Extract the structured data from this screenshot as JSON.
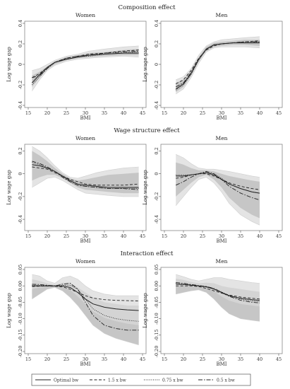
{
  "figure": {
    "legend": [
      {
        "label": "Optimal bw",
        "dash": ""
      },
      {
        "label": "1.5 x bw",
        "dash": "4 2.5"
      },
      {
        "label": "0.75 x bw",
        "dash": "1 1.6"
      },
      {
        "label": "0.5 x bw",
        "dash": "6 2 1.5 2"
      }
    ],
    "band_colors": {
      "outer": "#e4e4e4",
      "inner": "#c6c6c6"
    }
  },
  "chart_data": [
    {
      "type": "line",
      "section": "Composition effect",
      "title": "Women",
      "xlabel": "BMI",
      "ylabel": "Log wage gap",
      "xticks": [
        15,
        20,
        25,
        30,
        35,
        40,
        45
      ],
      "yticks": [
        "0.4",
        "0.2",
        "0",
        "-0.2",
        "-0.4"
      ],
      "xlim": [
        15,
        45
      ],
      "ylim": [
        -0.4,
        0.4
      ],
      "band_pattern": "nested",
      "x": [
        16,
        18,
        20,
        22,
        25,
        28,
        31,
        35,
        40,
        44
      ],
      "series": [
        {
          "name": "Optimal bw",
          "values": [
            -0.18,
            -0.1,
            -0.03,
            0.02,
            0.05,
            0.07,
            0.09,
            0.1,
            0.11,
            0.11
          ]
        },
        {
          "name": "1.5 x bw",
          "values": [
            -0.13,
            -0.09,
            -0.03,
            0.02,
            0.06,
            0.08,
            0.1,
            0.11,
            0.13,
            0.14
          ]
        },
        {
          "name": "0.75 x bw",
          "values": [
            -0.2,
            -0.12,
            -0.04,
            0.02,
            0.05,
            0.07,
            0.08,
            0.1,
            0.11,
            0.12
          ]
        },
        {
          "name": "0.5 x bw",
          "values": [
            -0.13,
            -0.11,
            -0.04,
            0.02,
            0.06,
            0.08,
            0.09,
            0.11,
            0.12,
            0.13
          ]
        }
      ],
      "ci_outer": {
        "lower": [
          -0.26,
          -0.15,
          -0.06,
          -0.01,
          0.03,
          0.05,
          0.06,
          0.07,
          0.08,
          0.07
        ],
        "upper": [
          -0.06,
          -0.04,
          0.0,
          0.04,
          0.08,
          0.1,
          0.13,
          0.15,
          0.17,
          0.18
        ]
      },
      "ci_inner": {
        "lower": [
          -0.22,
          -0.13,
          -0.05,
          0.0,
          0.04,
          0.06,
          0.07,
          0.08,
          0.09,
          0.09
        ],
        "upper": [
          -0.11,
          -0.07,
          -0.02,
          0.03,
          0.07,
          0.09,
          0.11,
          0.12,
          0.14,
          0.15
        ]
      }
    },
    {
      "type": "line",
      "section": "Composition effect",
      "title": "Men",
      "xlabel": "BMI",
      "ylabel": "Log wage gap",
      "xticks": [
        15,
        20,
        25,
        30,
        35,
        40,
        45
      ],
      "yticks": [
        "0.4",
        "0.2",
        "0",
        "-0.2",
        "-0.4"
      ],
      "xlim": [
        15,
        45
      ],
      "ylim": [
        -0.4,
        0.4
      ],
      "band_pattern": "nested",
      "x": [
        18,
        20,
        22,
        24,
        26,
        28,
        30,
        33,
        36,
        40
      ],
      "series": [
        {
          "name": "Optimal bw",
          "values": [
            -0.24,
            -0.19,
            -0.09,
            0.05,
            0.15,
            0.19,
            0.2,
            0.21,
            0.21,
            0.21
          ]
        },
        {
          "name": "1.5 x bw",
          "values": [
            -0.19,
            -0.15,
            -0.06,
            0.06,
            0.14,
            0.18,
            0.2,
            0.21,
            0.22,
            0.23
          ]
        },
        {
          "name": "0.75 x bw",
          "values": [
            -0.25,
            -0.2,
            -0.1,
            0.04,
            0.15,
            0.19,
            0.2,
            0.21,
            0.21,
            0.22
          ]
        },
        {
          "name": "0.5 x bw",
          "values": [
            -0.22,
            -0.18,
            -0.08,
            0.05,
            0.15,
            0.19,
            0.2,
            0.21,
            0.22,
            0.22
          ]
        }
      ],
      "ci_outer": {
        "lower": [
          -0.29,
          -0.24,
          -0.13,
          0.01,
          0.12,
          0.16,
          0.17,
          0.17,
          0.17,
          0.16
        ],
        "upper": [
          -0.15,
          -0.12,
          -0.04,
          0.09,
          0.18,
          0.22,
          0.24,
          0.25,
          0.26,
          0.27
        ]
      },
      "ci_inner": {
        "lower": [
          -0.27,
          -0.22,
          -0.11,
          0.03,
          0.13,
          0.17,
          0.18,
          0.19,
          0.19,
          0.18
        ],
        "upper": [
          -0.18,
          -0.15,
          -0.06,
          0.07,
          0.17,
          0.21,
          0.22,
          0.23,
          0.24,
          0.24
        ]
      }
    },
    {
      "type": "line",
      "section": "Wage structure effect",
      "title": "Women",
      "xlabel": "BMI",
      "ylabel": "Log wage gap",
      "xticks": [
        15,
        20,
        25,
        30,
        35,
        40,
        45
      ],
      "yticks": [
        "0.2",
        "0",
        "-0.2",
        "-0.4"
      ],
      "xlim": [
        15,
        45
      ],
      "ylim": [
        -0.48,
        0.24
      ],
      "band_pattern": "nested",
      "x": [
        16,
        18,
        20,
        22,
        24,
        26,
        28,
        30,
        33,
        36,
        40,
        44
      ],
      "series": [
        {
          "name": "Optimal bw",
          "values": [
            0.08,
            0.07,
            0.05,
            0.02,
            -0.02,
            -0.06,
            -0.09,
            -0.1,
            -0.11,
            -0.12,
            -0.12,
            -0.12
          ]
        },
        {
          "name": "1.5 x bw",
          "values": [
            0.06,
            0.05,
            0.04,
            0.01,
            -0.02,
            -0.05,
            -0.07,
            -0.09,
            -0.1,
            -0.1,
            -0.1,
            -0.09
          ]
        },
        {
          "name": "0.75 x bw",
          "values": [
            0.1,
            0.08,
            0.05,
            0.02,
            -0.02,
            -0.07,
            -0.1,
            -0.11,
            -0.12,
            -0.13,
            -0.13,
            -0.13
          ]
        },
        {
          "name": "0.5 x bw",
          "values": [
            0.11,
            0.09,
            0.06,
            0.02,
            -0.03,
            -0.07,
            -0.1,
            -0.11,
            -0.12,
            -0.13,
            -0.13,
            -0.14
          ]
        }
      ],
      "ci_outer": {
        "lower": [
          -0.12,
          -0.08,
          -0.04,
          -0.03,
          -0.06,
          -0.1,
          -0.14,
          -0.17,
          -0.18,
          -0.19,
          -0.2,
          -0.2
        ],
        "upper": [
          0.24,
          0.2,
          0.14,
          0.07,
          0.01,
          -0.03,
          -0.04,
          -0.02,
          0.01,
          0.03,
          0.05,
          0.06
        ]
      },
      "ci_inner": {
        "lower": [
          -0.06,
          -0.03,
          -0.01,
          -0.01,
          -0.04,
          -0.08,
          -0.12,
          -0.14,
          -0.15,
          -0.16,
          -0.17,
          -0.17
        ],
        "upper": [
          0.2,
          0.16,
          0.11,
          0.05,
          0.0,
          -0.04,
          -0.06,
          -0.05,
          -0.03,
          -0.01,
          0.0,
          0.01
        ]
      }
    },
    {
      "type": "line",
      "section": "Wage structure effect",
      "title": "Men",
      "xlabel": "BMI",
      "ylabel": "Log wage gap",
      "xticks": [
        15,
        20,
        25,
        30,
        35,
        40,
        45
      ],
      "yticks": [
        "0.2",
        "0",
        "-0.2",
        "-0.4"
      ],
      "xlim": [
        15,
        45
      ],
      "ylim": [
        -0.48,
        0.24
      ],
      "band_pattern": "nested",
      "x": [
        18,
        20,
        22,
        24,
        26,
        28,
        30,
        32,
        35,
        38,
        40
      ],
      "series": [
        {
          "name": "Optimal bw",
          "values": [
            -0.02,
            -0.02,
            -0.01,
            0.0,
            0.01,
            -0.01,
            -0.05,
            -0.09,
            -0.13,
            -0.16,
            -0.17
          ]
        },
        {
          "name": "1.5 x bw",
          "values": [
            -0.04,
            -0.03,
            -0.01,
            0.0,
            0.0,
            -0.02,
            -0.05,
            -0.08,
            -0.11,
            -0.13,
            -0.14
          ]
        },
        {
          "name": "0.75 x bw",
          "values": [
            -0.01,
            -0.01,
            -0.01,
            0.0,
            0.01,
            0.0,
            -0.04,
            -0.09,
            -0.13,
            -0.16,
            -0.17
          ]
        },
        {
          "name": "0.5 x bw",
          "values": [
            -0.1,
            -0.07,
            -0.03,
            0.0,
            0.02,
            0.0,
            -0.05,
            -0.11,
            -0.17,
            -0.21,
            -0.23
          ]
        }
      ],
      "ci_outer": {
        "lower": [
          -0.28,
          -0.2,
          -0.12,
          -0.05,
          -0.03,
          -0.08,
          -0.16,
          -0.26,
          -0.36,
          -0.42,
          -0.45
        ],
        "upper": [
          0.17,
          0.14,
          0.09,
          0.05,
          0.04,
          0.04,
          0.03,
          0.02,
          0.0,
          -0.02,
          -0.03
        ]
      },
      "ci_inner": {
        "lower": [
          -0.2,
          -0.14,
          -0.08,
          -0.03,
          -0.01,
          -0.05,
          -0.12,
          -0.21,
          -0.3,
          -0.36,
          -0.39
        ],
        "upper": [
          0.1,
          0.08,
          0.05,
          0.03,
          0.03,
          0.02,
          0.0,
          -0.02,
          -0.04,
          -0.06,
          -0.07
        ]
      }
    },
    {
      "type": "line",
      "section": "Interaction effect",
      "title": "Women",
      "xlabel": "BMI",
      "ylabel": "Log wage gap",
      "xticks": [
        15,
        20,
        25,
        30,
        35,
        40,
        45
      ],
      "yticks": [
        "0.05",
        "0.00",
        "-0.05",
        "-0.10",
        "-0.15",
        "-0.20"
      ],
      "xlim": [
        15,
        45
      ],
      "ylim": [
        -0.2,
        0.05
      ],
      "band_pattern": "split",
      "x": [
        16,
        18,
        20,
        22,
        24,
        26,
        28,
        30,
        32,
        35,
        38,
        41,
        44
      ],
      "series": [
        {
          "name": "Optimal bw",
          "values": [
            0.0,
            0.0,
            0.0,
            0.0,
            0.0,
            -0.005,
            -0.02,
            -0.04,
            -0.055,
            -0.065,
            -0.07,
            -0.073,
            -0.075
          ]
        },
        {
          "name": "1.5 x bw",
          "values": [
            -0.002,
            -0.001,
            0.0,
            -0.001,
            -0.003,
            -0.01,
            -0.02,
            -0.03,
            -0.037,
            -0.042,
            -0.044,
            -0.045,
            -0.046
          ]
        },
        {
          "name": "0.75 x bw",
          "values": [
            0.002,
            0.002,
            0.001,
            0.0,
            0.002,
            0.002,
            -0.01,
            -0.04,
            -0.07,
            -0.09,
            -0.1,
            -0.105,
            -0.108
          ]
        },
        {
          "name": "0.5 x bw",
          "values": [
            0.005,
            0.004,
            0.002,
            0.0,
            0.005,
            0.008,
            -0.01,
            -0.05,
            -0.09,
            -0.12,
            -0.13,
            -0.135,
            -0.135
          ]
        }
      ],
      "ci_outer": {
        "lower": [
          -0.04,
          -0.025,
          -0.01,
          -0.005,
          -0.015,
          -0.035,
          -0.06,
          -0.09,
          -0.12,
          -0.145,
          -0.16,
          -0.17,
          -0.18
        ],
        "upper": [
          0.035,
          0.03,
          0.015,
          0.008,
          0.025,
          0.03,
          0.02,
          0.0,
          -0.015,
          -0.025,
          -0.03,
          -0.03,
          -0.03
        ]
      },
      "ci_inner": {
        "lower": [
          -0.025,
          -0.015,
          -0.005,
          -0.002,
          -0.01,
          -0.025,
          -0.05,
          -0.08,
          -0.105,
          -0.125,
          -0.14,
          -0.15,
          -0.16
        ],
        "upper": [
          0.02,
          0.015,
          0.008,
          0.003,
          0.01,
          0.01,
          -0.005,
          -0.02,
          -0.035,
          -0.05,
          -0.055,
          -0.06,
          -0.06
        ]
      }
    },
    {
      "type": "line",
      "section": "Interaction effect",
      "title": "Men",
      "xlabel": "BMI",
      "ylabel": "Log wage gap",
      "xticks": [
        15,
        20,
        25,
        30,
        35,
        40,
        45
      ],
      "yticks": [
        "0.05",
        "0.00",
        "-0.05",
        "-0.10",
        "-0.15",
        "-0.20"
      ],
      "xlim": [
        15,
        45
      ],
      "ylim": [
        -0.2,
        0.05
      ],
      "band_pattern": "split",
      "x": [
        18,
        20,
        22,
        24,
        26,
        28,
        30,
        32,
        35,
        38,
        40
      ],
      "series": [
        {
          "name": "Optimal bw",
          "values": [
            0.005,
            0.004,
            0.002,
            0.0,
            -0.003,
            -0.01,
            -0.02,
            -0.03,
            -0.038,
            -0.042,
            -0.044
          ]
        },
        {
          "name": "1.5 x bw",
          "values": [
            0.0,
            0.0,
            0.0,
            -0.002,
            -0.008,
            -0.015,
            -0.022,
            -0.028,
            -0.034,
            -0.038,
            -0.04
          ]
        },
        {
          "name": "0.75 x bw",
          "values": [
            0.008,
            0.006,
            0.003,
            0.0,
            -0.002,
            -0.008,
            -0.018,
            -0.03,
            -0.04,
            -0.046,
            -0.048
          ]
        },
        {
          "name": "0.5 x bw",
          "values": [
            0.01,
            0.008,
            0.004,
            0.001,
            -0.002,
            -0.008,
            -0.02,
            -0.032,
            -0.044,
            -0.05,
            -0.052
          ]
        }
      ],
      "ci_outer": {
        "lower": [
          -0.025,
          -0.02,
          -0.015,
          -0.012,
          -0.02,
          -0.04,
          -0.065,
          -0.085,
          -0.1,
          -0.105,
          -0.108
        ],
        "upper": [
          0.035,
          0.028,
          0.02,
          0.015,
          0.02,
          0.025,
          0.025,
          0.02,
          0.015,
          0.01,
          0.008
        ]
      },
      "ci_inner": {
        "lower": [
          -0.015,
          -0.012,
          -0.008,
          -0.006,
          -0.012,
          -0.025,
          -0.045,
          -0.065,
          -0.08,
          -0.088,
          -0.09
        ],
        "upper": [
          0.022,
          0.018,
          0.012,
          0.008,
          0.01,
          0.008,
          0.0,
          -0.005,
          -0.01,
          -0.015,
          -0.018
        ]
      }
    }
  ]
}
